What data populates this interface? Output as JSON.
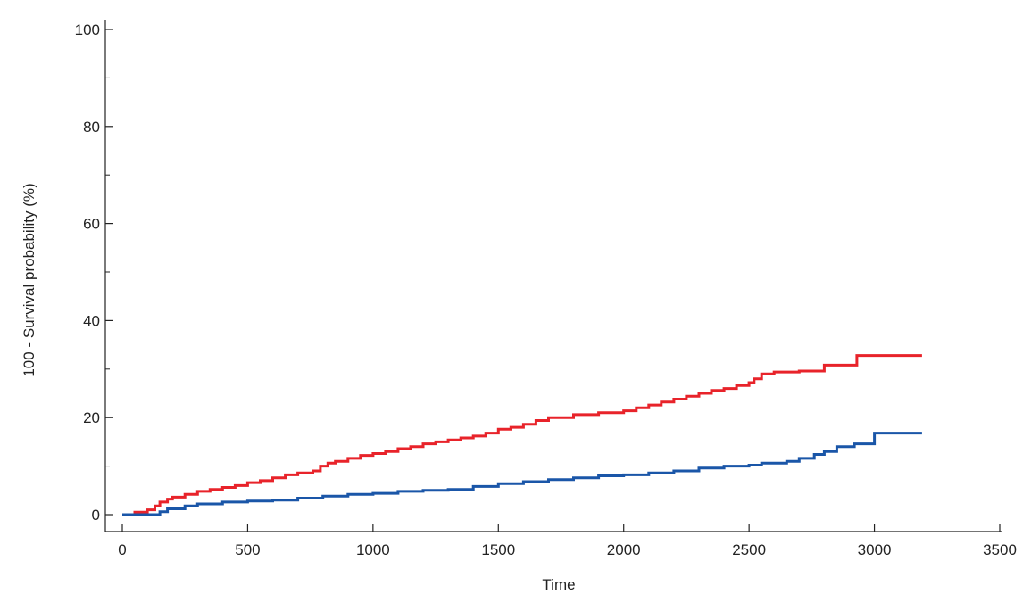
{
  "chart_data": {
    "type": "line",
    "title": "",
    "xlabel": "Time",
    "ylabel": "100 - Survival probability (%)",
    "xlim": [
      -20,
      3500
    ],
    "ylim": [
      -3,
      102
    ],
    "x_ticks": [
      0,
      500,
      1000,
      1500,
      2000,
      2500,
      3000,
      3500
    ],
    "y_ticks": [
      0,
      20,
      40,
      60,
      80,
      100
    ],
    "y_minor_step": 10,
    "step": true,
    "grid": false,
    "legend": "none",
    "series": [
      {
        "color": "#e8232a",
        "x": [
          0,
          50,
          100,
          130,
          150,
          180,
          200,
          250,
          300,
          350,
          400,
          450,
          500,
          550,
          600,
          650,
          700,
          760,
          790,
          820,
          850,
          900,
          950,
          1000,
          1050,
          1100,
          1150,
          1200,
          1250,
          1300,
          1350,
          1400,
          1450,
          1500,
          1550,
          1600,
          1650,
          1700,
          1800,
          1900,
          2000,
          2050,
          2100,
          2150,
          2200,
          2250,
          2300,
          2350,
          2400,
          2450,
          2500,
          2520,
          2550,
          2600,
          2700,
          2800,
          2900,
          2930,
          3000,
          3190
        ],
        "y": [
          0,
          0.5,
          1,
          1.8,
          2.6,
          3.2,
          3.6,
          4.2,
          4.8,
          5.2,
          5.6,
          6.0,
          6.6,
          7.0,
          7.6,
          8.2,
          8.6,
          9.0,
          10.0,
          10.6,
          11.0,
          11.6,
          12.2,
          12.6,
          13.0,
          13.6,
          14.0,
          14.6,
          15.0,
          15.4,
          15.8,
          16.2,
          16.8,
          17.6,
          18.0,
          18.6,
          19.4,
          20.0,
          20.6,
          21.0,
          21.4,
          22.0,
          22.6,
          23.2,
          23.8,
          24.4,
          25.0,
          25.6,
          26.0,
          26.6,
          27.2,
          28.0,
          29.0,
          29.4,
          29.6,
          30.8,
          30.8,
          32.8,
          32.8,
          32.8
        ]
      },
      {
        "color": "#1a56a8",
        "x": [
          0,
          150,
          180,
          250,
          300,
          400,
          500,
          600,
          700,
          800,
          900,
          1000,
          1100,
          1200,
          1300,
          1400,
          1500,
          1600,
          1700,
          1800,
          1900,
          2000,
          2100,
          2200,
          2300,
          2400,
          2500,
          2550,
          2650,
          2700,
          2760,
          2800,
          2850,
          2920,
          3000,
          3190
        ],
        "y": [
          0,
          0.6,
          1.2,
          1.8,
          2.2,
          2.6,
          2.8,
          3.0,
          3.4,
          3.8,
          4.2,
          4.4,
          4.8,
          5.0,
          5.2,
          5.8,
          6.4,
          6.8,
          7.2,
          7.6,
          8.0,
          8.2,
          8.6,
          9.0,
          9.6,
          10.0,
          10.2,
          10.6,
          11.0,
          11.6,
          12.4,
          13.0,
          14.0,
          14.6,
          16.8,
          16.8
        ]
      }
    ]
  }
}
